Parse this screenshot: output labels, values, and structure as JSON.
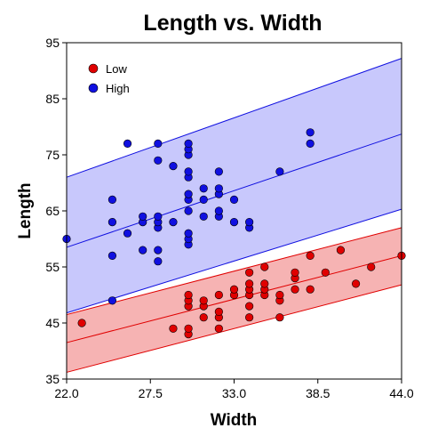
{
  "chart_data": {
    "type": "scatter",
    "title": "Length vs. Width",
    "xlabel": "Width",
    "ylabel": "Length",
    "xlim": [
      22.0,
      44.0
    ],
    "ylim": [
      35,
      95
    ],
    "xticks": [
      "22.0",
      "27.5",
      "33.0",
      "38.5",
      "44.0"
    ],
    "yticks": [
      "35",
      "45",
      "55",
      "65",
      "75",
      "85",
      "95"
    ],
    "legend_position": "top-left",
    "series": [
      {
        "name": "Low",
        "color": "#e00000",
        "band_color": "#f6b3b3",
        "fit_line": {
          "y_at_xmin": 41.5,
          "y_at_xmax": 57.0
        },
        "band_upper": {
          "y_at_xmin": 46.5,
          "y_at_xmax": 62.0
        },
        "band_lower": {
          "y_at_xmin": 36.2,
          "y_at_xmax": 51.8
        },
        "points": [
          [
            23,
            45
          ],
          [
            29,
            44
          ],
          [
            30,
            43
          ],
          [
            30,
            44
          ],
          [
            30,
            48
          ],
          [
            30,
            49
          ],
          [
            30,
            50
          ],
          [
            31,
            46
          ],
          [
            31,
            48
          ],
          [
            31,
            49
          ],
          [
            32,
            44
          ],
          [
            32,
            46
          ],
          [
            32,
            47
          ],
          [
            32,
            50
          ],
          [
            33,
            50
          ],
          [
            33,
            51
          ],
          [
            34,
            46
          ],
          [
            34,
            48
          ],
          [
            34,
            50
          ],
          [
            34,
            51
          ],
          [
            34,
            52
          ],
          [
            34,
            54
          ],
          [
            35,
            50
          ],
          [
            35,
            51
          ],
          [
            35,
            52
          ],
          [
            35,
            55
          ],
          [
            36,
            46
          ],
          [
            36,
            49
          ],
          [
            36,
            50
          ],
          [
            37,
            51
          ],
          [
            37,
            53
          ],
          [
            37,
            54
          ],
          [
            38,
            51
          ],
          [
            38,
            57
          ],
          [
            39,
            54
          ],
          [
            40,
            58
          ],
          [
            41,
            52
          ],
          [
            42,
            55
          ],
          [
            44,
            57
          ]
        ]
      },
      {
        "name": "High",
        "color": "#1010e0",
        "band_color": "#c8c8fc",
        "fit_line": {
          "y_at_xmin": 58.5,
          "y_at_xmax": 78.7
        },
        "band_upper": {
          "y_at_xmin": 71.0,
          "y_at_xmax": 92.2
        },
        "band_lower": {
          "y_at_xmin": 46.8,
          "y_at_xmax": 65.3
        },
        "points": [
          [
            22,
            60
          ],
          [
            25,
            49
          ],
          [
            25,
            57
          ],
          [
            25,
            63
          ],
          [
            25,
            67
          ],
          [
            26,
            61
          ],
          [
            26,
            77
          ],
          [
            27,
            58
          ],
          [
            27,
            63
          ],
          [
            27,
            64
          ],
          [
            28,
            56
          ],
          [
            28,
            58
          ],
          [
            28,
            62
          ],
          [
            28,
            63
          ],
          [
            28,
            64
          ],
          [
            28,
            74
          ],
          [
            28,
            77
          ],
          [
            29,
            63
          ],
          [
            29,
            73
          ],
          [
            30,
            59
          ],
          [
            30,
            60
          ],
          [
            30,
            61
          ],
          [
            30,
            65
          ],
          [
            30,
            67
          ],
          [
            30,
            68
          ],
          [
            30,
            71
          ],
          [
            30,
            72
          ],
          [
            30,
            75
          ],
          [
            30,
            76
          ],
          [
            30,
            77
          ],
          [
            31,
            64
          ],
          [
            31,
            67
          ],
          [
            31,
            69
          ],
          [
            32,
            64
          ],
          [
            32,
            65
          ],
          [
            32,
            68
          ],
          [
            32,
            69
          ],
          [
            32,
            72
          ],
          [
            33,
            63
          ],
          [
            33,
            67
          ],
          [
            34,
            62
          ],
          [
            34,
            63
          ],
          [
            36,
            72
          ],
          [
            38,
            77
          ],
          [
            38,
            79
          ]
        ]
      }
    ]
  }
}
